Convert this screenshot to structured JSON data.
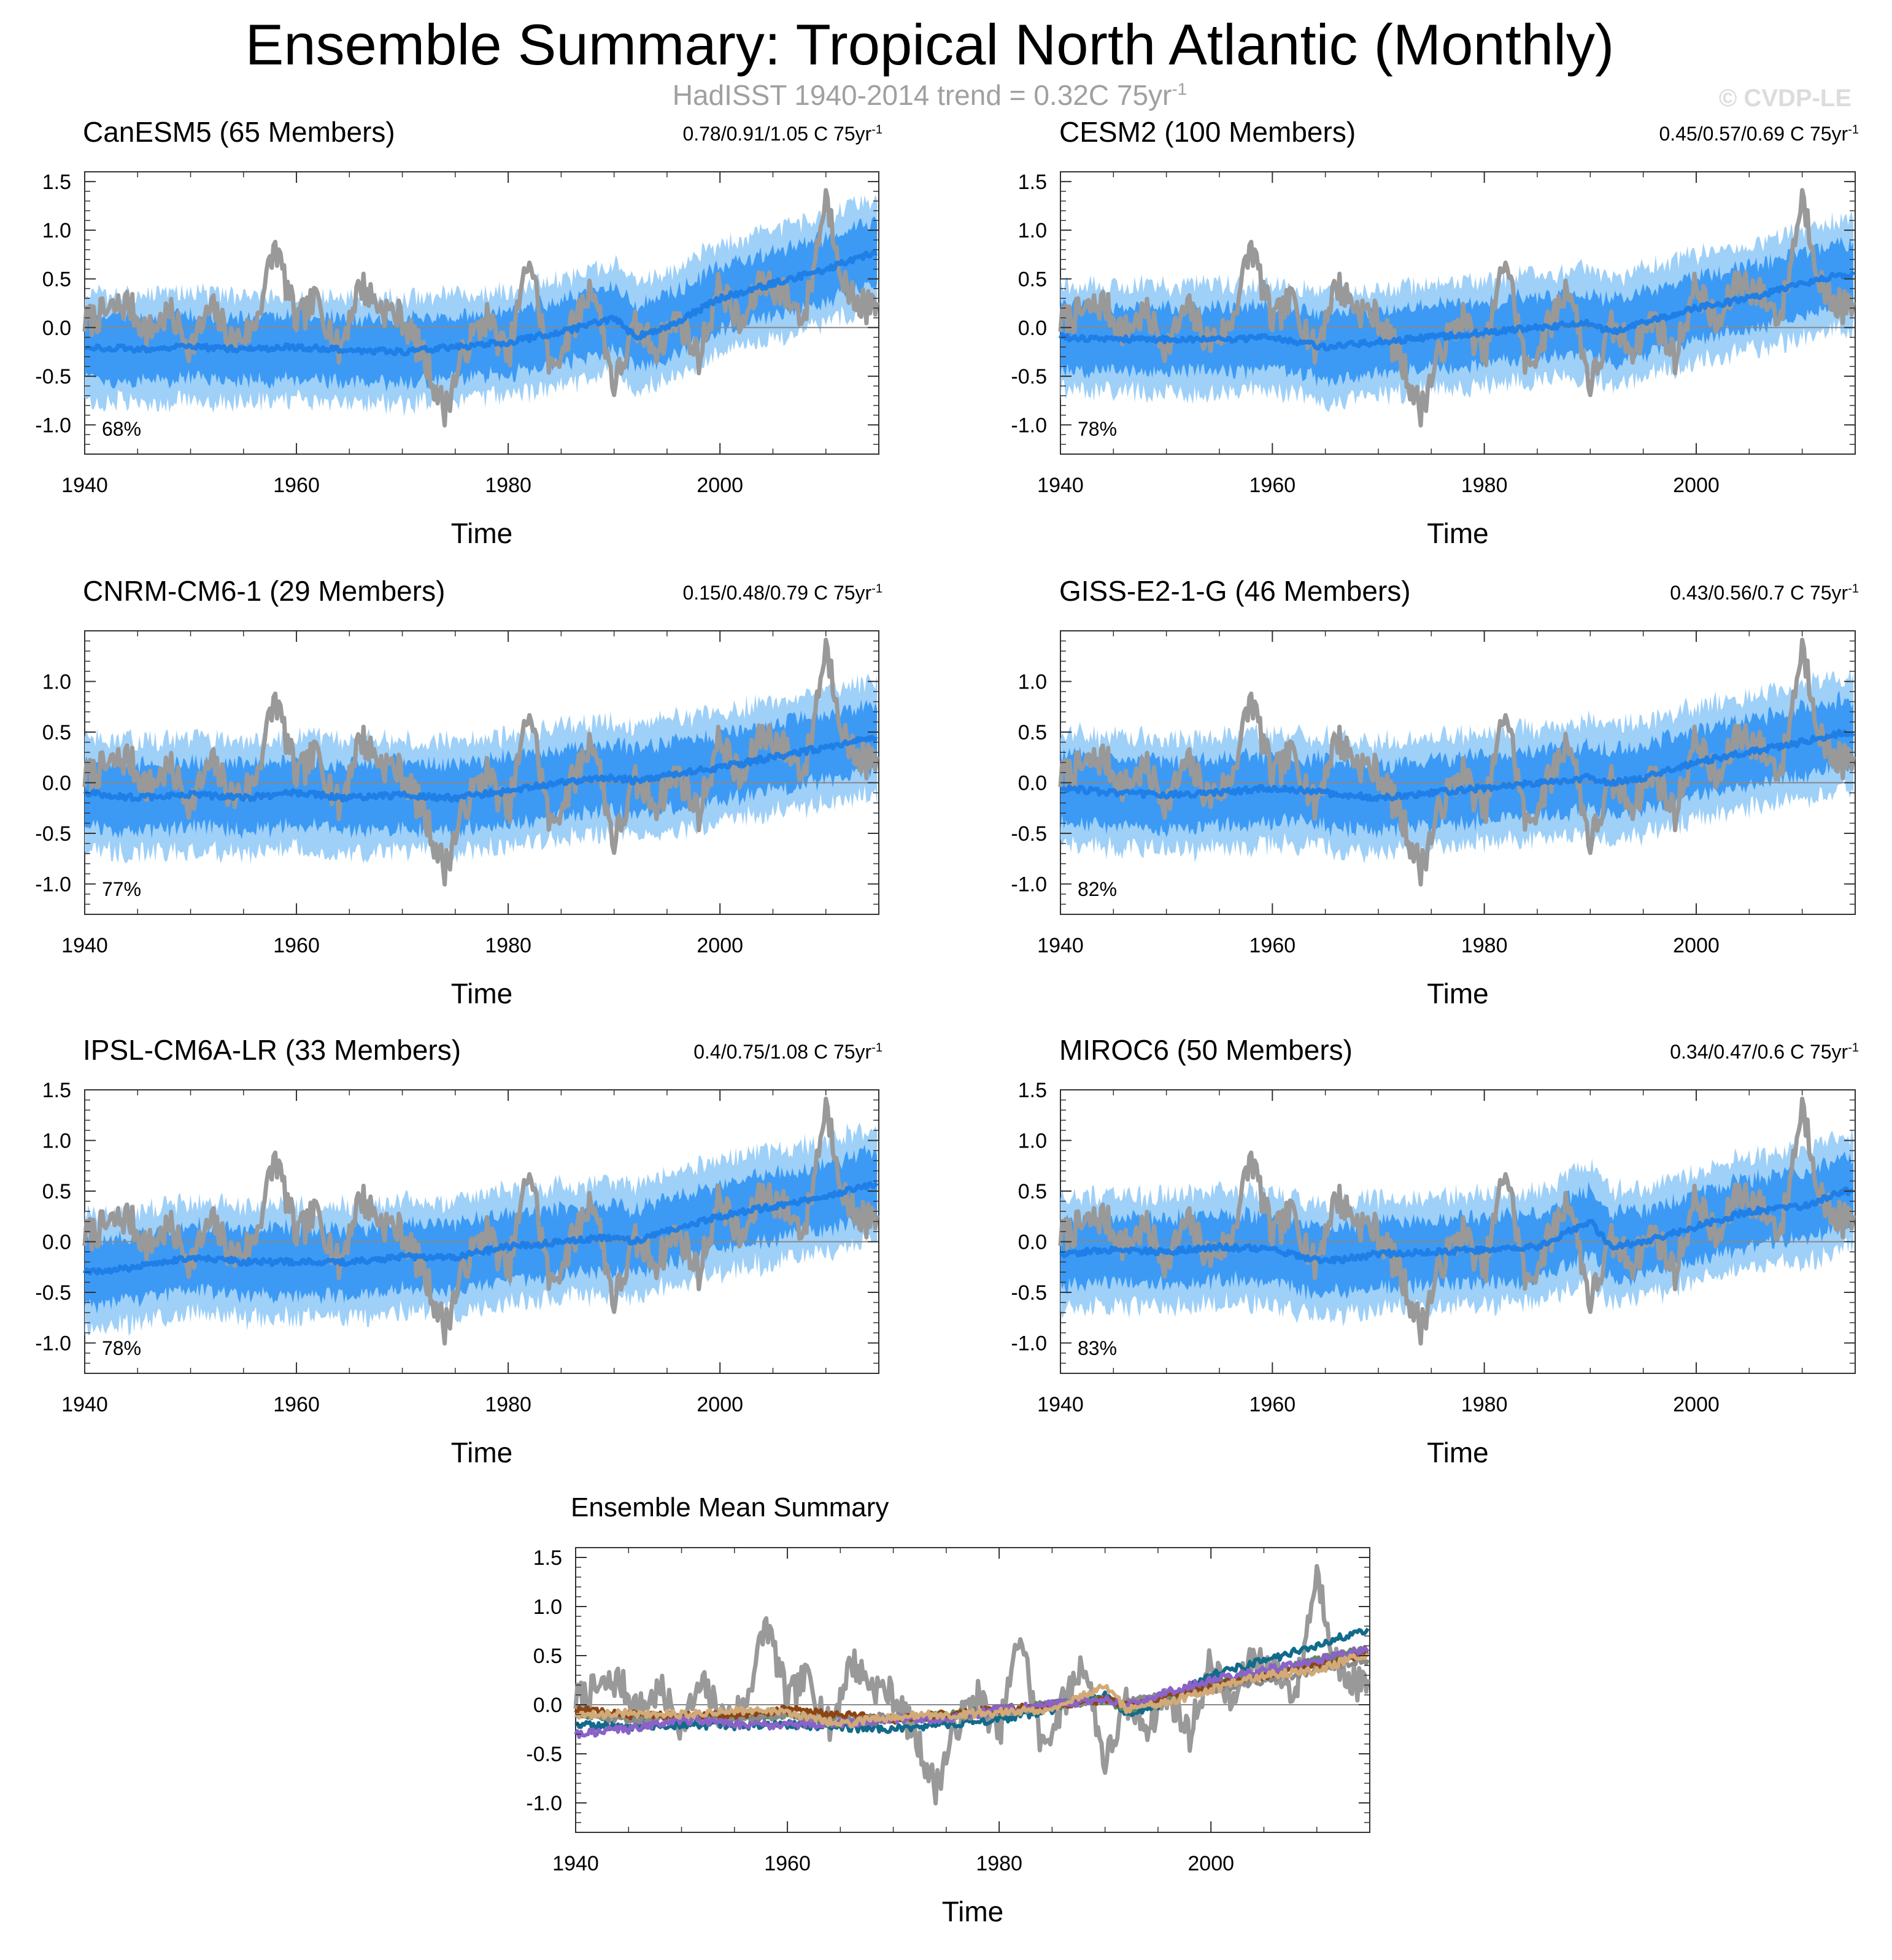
{
  "figure": {
    "title": "Ensemble Summary: Tropical North Atlantic (Monthly)",
    "subtitle_prefix": "HadISST 1940-2014 trend = 0.32C 75yr",
    "subtitle_sup": "-1",
    "credit": "© CVDP-LE",
    "colors": {
      "observed": "#999999",
      "spread_outer": "#9fd0f8",
      "spread_inner": "#3c9af5",
      "ensemble_mean": "#1f7fe6",
      "zero_line": "#888888"
    }
  },
  "panels": [
    {
      "model": "CanESM5 (65 Members)",
      "title_color": "#116b8a",
      "range_text": "0.78/0.91/1.05 C 75yr",
      "range_sup": "-1",
      "pct": "68%",
      "y_ticks": [
        "1.5",
        "1.0",
        "0.5",
        "0.0",
        "-0.5",
        "-1.0"
      ],
      "ylim": [
        -1.3,
        1.6
      ]
    },
    {
      "model": "CESM2 (100 Members)",
      "title_color": "#5a8a5e",
      "range_text": "0.45/0.57/0.69 C 75yr",
      "range_sup": "-1",
      "pct": "78%",
      "y_ticks": [
        "1.5",
        "1.0",
        "0.5",
        "0.0",
        "-0.5",
        "-1.0"
      ],
      "ylim": [
        -1.3,
        1.6
      ]
    },
    {
      "model": "CNRM-CM6-1 (29 Members)",
      "title_color": "#8a8a8a",
      "range_text": "0.15/0.48/0.79 C 75yr",
      "range_sup": "-1",
      "pct": "77%",
      "y_ticks": [
        "1.0",
        "0.5",
        "0.0",
        "-0.5",
        "-1.0"
      ],
      "ylim": [
        -1.3,
        1.5
      ]
    },
    {
      "model": "GISS-E2-1-G (46 Members)",
      "title_color": "#8b4513",
      "range_text": "0.43/0.56/0.7 C 75yr",
      "range_sup": "-1",
      "pct": "82%",
      "y_ticks": [
        "1.0",
        "0.5",
        "0.0",
        "-0.5",
        "-1.0"
      ],
      "ylim": [
        -1.3,
        1.5
      ]
    },
    {
      "model": "IPSL-CM6A-LR (33 Members)",
      "title_color": "#8a62c8",
      "range_text": "0.4/0.75/1.08 C 75yr",
      "range_sup": "-1",
      "pct": "78%",
      "y_ticks": [
        "1.5",
        "1.0",
        "0.5",
        "0.0",
        "-0.5",
        "-1.0"
      ],
      "ylim": [
        -1.3,
        1.5
      ]
    },
    {
      "model": "MIROC6 (50 Members)",
      "title_color": "#d2aa78",
      "range_text": "0.34/0.47/0.6 C 75yr",
      "range_sup": "-1",
      "pct": "83%",
      "y_ticks": [
        "1.5",
        "1.0",
        "0.5",
        "0.0",
        "-0.5",
        "-1.0"
      ],
      "ylim": [
        -1.3,
        1.5
      ]
    },
    {
      "model": "Ensemble Mean Summary",
      "title_color": "#000000",
      "y_ticks": [
        "1.5",
        "1.0",
        "0.5",
        "0.0",
        "-0.5",
        "-1.0"
      ],
      "ylim": [
        -1.3,
        1.6
      ]
    }
  ],
  "chart_data": {
    "type": "line",
    "xlabel": "Time",
    "x_ticks": [
      "1940",
      "1960",
      "1980",
      "2000"
    ],
    "xlim": [
      1940,
      2015
    ],
    "observed": {
      "name": "HadISST",
      "years": [
        1940,
        1942,
        1944,
        1946,
        1948,
        1950,
        1952,
        1954,
        1956,
        1958,
        1960,
        1962,
        1964,
        1966,
        1968,
        1970,
        1972,
        1974,
        1976,
        1978,
        1980,
        1982,
        1984,
        1986,
        1988,
        1990,
        1992,
        1994,
        1996,
        1998,
        2000,
        2002,
        2004,
        2006,
        2008,
        2010,
        2012,
        2014
      ],
      "values": [
        0.05,
        0.15,
        0.25,
        -0.05,
        0.15,
        -0.2,
        0.2,
        -0.15,
        0.0,
        0.85,
        0.05,
        0.3,
        -0.25,
        0.45,
        0.2,
        0.1,
        -0.3,
        -0.85,
        -0.2,
        0.1,
        -0.3,
        0.75,
        -0.45,
        0.0,
        0.45,
        -0.6,
        0.0,
        -0.2,
        0.1,
        -0.3,
        0.45,
        0.0,
        0.5,
        0.35,
        0.1,
        1.35,
        0.35,
        0.2
      ]
    },
    "ensemble_mean": {
      "years": [
        1940,
        1945,
        1950,
        1955,
        1960,
        1965,
        1970,
        1975,
        1980,
        1985,
        1990,
        1992,
        1995,
        2000,
        2005,
        2010,
        2014
      ],
      "series": [
        {
          "name": "CanESM5",
          "color": "#116b8a",
          "values": [
            -0.2,
            -0.22,
            -0.2,
            -0.22,
            -0.2,
            -0.23,
            -0.25,
            -0.2,
            -0.15,
            -0.05,
            0.1,
            -0.1,
            0.0,
            0.3,
            0.45,
            0.6,
            0.75
          ]
        },
        {
          "name": "CESM2",
          "color": "#5a8a5e",
          "values": [
            -0.1,
            -0.12,
            -0.12,
            -0.13,
            -0.1,
            -0.2,
            -0.15,
            -0.1,
            -0.05,
            0.0,
            0.05,
            -0.05,
            0.05,
            0.2,
            0.3,
            0.45,
            0.55
          ]
        },
        {
          "name": "CNRM-CM6-1",
          "color": "#8a8a8a",
          "values": [
            -0.1,
            -0.15,
            -0.12,
            -0.15,
            -0.1,
            -0.15,
            -0.12,
            -0.15,
            -0.08,
            0.0,
            0.05,
            0.02,
            0.08,
            0.15,
            0.25,
            0.35,
            0.45
          ]
        },
        {
          "name": "GISS-E2-1-G",
          "color": "#8b4513",
          "values": [
            -0.05,
            -0.1,
            -0.12,
            -0.1,
            -0.05,
            -0.1,
            -0.15,
            -0.1,
            -0.05,
            0.0,
            0.05,
            0.0,
            0.05,
            0.2,
            0.3,
            0.4,
            0.5
          ]
        },
        {
          "name": "IPSL-CM6A-LR",
          "color": "#8a62c8",
          "values": [
            -0.3,
            -0.25,
            -0.15,
            -0.2,
            -0.2,
            -0.2,
            -0.15,
            -0.15,
            -0.05,
            0.0,
            0.05,
            0.0,
            0.1,
            0.25,
            0.35,
            0.45,
            0.55
          ]
        },
        {
          "name": "MIROC6",
          "color": "#d2aa78",
          "values": [
            -0.12,
            -0.08,
            -0.1,
            -0.05,
            -0.08,
            -0.2,
            -0.12,
            -0.1,
            -0.08,
            -0.05,
            0.2,
            -0.05,
            0.0,
            0.15,
            0.3,
            0.35,
            0.5
          ]
        }
      ]
    }
  }
}
